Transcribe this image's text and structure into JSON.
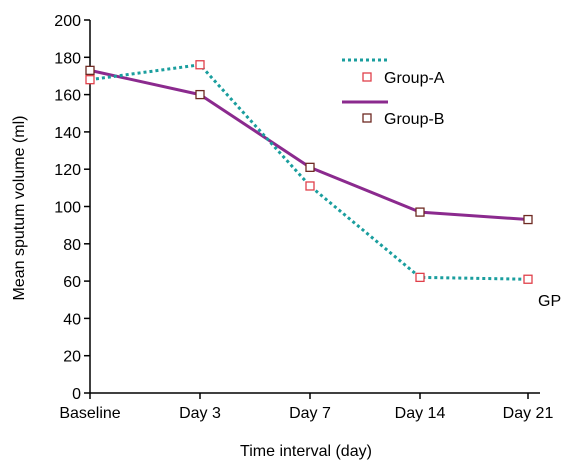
{
  "chart_data": {
    "type": "line",
    "title": "",
    "xlabel": "Time interval (day)",
    "ylabel": "Mean sputum volume (ml)",
    "categories": [
      "Baseline",
      "Day 3",
      "Day 7",
      "Day 14",
      "Day 21"
    ],
    "ylim": [
      0,
      200
    ],
    "yticks": [
      "0",
      "20",
      "40",
      "60",
      "80",
      "100",
      "120",
      "140",
      "160",
      "180",
      "200"
    ],
    "grid": false,
    "legend_position": "top-right",
    "annotation": "GP",
    "series": [
      {
        "name": "Group-A",
        "values": [
          168,
          176,
          111,
          62,
          61
        ],
        "color": "#1a9e9e",
        "line_style": "dotted",
        "marker": "square",
        "marker_color": "#e0404a"
      },
      {
        "name": "Group-B",
        "values": [
          173,
          160,
          121,
          97,
          93
        ],
        "color": "#8b2a8e",
        "line_style": "solid",
        "marker": "square",
        "marker_color": "#6e2a22"
      }
    ]
  }
}
